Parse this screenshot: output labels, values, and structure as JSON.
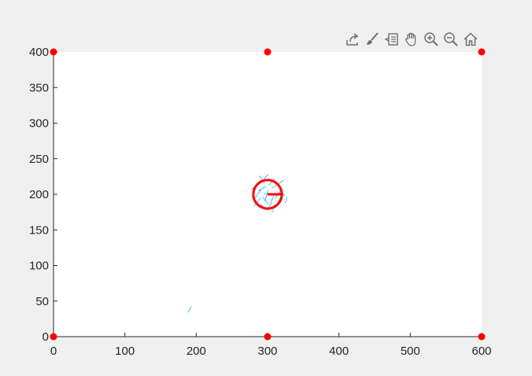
{
  "toolbar": {
    "buttons": [
      {
        "name": "export-icon"
      },
      {
        "name": "brush-icon"
      },
      {
        "name": "data-tips-icon"
      },
      {
        "name": "pan-icon"
      },
      {
        "name": "zoom-in-icon"
      },
      {
        "name": "zoom-out-icon"
      },
      {
        "name": "home-icon"
      }
    ],
    "icon_color": "#6e6e6e"
  },
  "chart_data": {
    "type": "scatter",
    "title": "",
    "xlabel": "",
    "ylabel": "",
    "xlim": [
      0,
      600
    ],
    "ylim": [
      0,
      400
    ],
    "xticks": [
      0,
      100,
      200,
      300,
      400,
      500,
      600
    ],
    "yticks": [
      0,
      50,
      100,
      150,
      200,
      250,
      300,
      350,
      400
    ],
    "grid": false,
    "legend": "none",
    "series": [
      {
        "marker": "filled-circle",
        "color": "#ff0000",
        "x": [
          0,
          300,
          600,
          0,
          300,
          600
        ],
        "y": [
          400,
          400,
          400,
          0,
          0,
          0
        ]
      }
    ],
    "circle": {
      "cx": 300,
      "cy": 200,
      "r": 20,
      "color": "#ff0000",
      "heading_deg": 0
    },
    "segments": {
      "color": "#4db8e8",
      "lines": [
        [
          [
            296,
            190
          ],
          [
            301,
            206
          ]
        ],
        [
          [
            304,
            188
          ],
          [
            309,
            199
          ]
        ],
        [
          [
            287,
            205
          ],
          [
            298,
            211
          ]
        ],
        [
          [
            292,
            218
          ],
          [
            301,
            228
          ]
        ],
        [
          [
            310,
            194
          ],
          [
            318,
            205
          ]
        ],
        [
          [
            281,
            183
          ],
          [
            290,
            195
          ]
        ],
        [
          [
            293,
            196
          ],
          [
            302,
            186
          ]
        ],
        [
          [
            306,
            209
          ],
          [
            316,
            214
          ]
        ],
        [
          [
            312,
            183
          ],
          [
            318,
            196
          ]
        ],
        [
          [
            299,
            178
          ],
          [
            306,
            188
          ]
        ],
        [
          [
            283,
            195
          ],
          [
            291,
            207
          ]
        ],
        [
          [
            302,
            213
          ],
          [
            310,
            222
          ]
        ],
        [
          [
            319,
            206
          ],
          [
            324,
            197
          ]
        ],
        [
          [
            288,
            226
          ],
          [
            296,
            216
          ]
        ],
        [
          [
            307,
            175
          ],
          [
            310,
            186
          ]
        ],
        [
          [
            325,
            188
          ],
          [
            327,
            196
          ]
        ],
        [
          [
            278,
            207
          ],
          [
            285,
            213
          ]
        ],
        [
          [
            315,
            214
          ],
          [
            322,
            220
          ]
        ],
        [
          [
            295,
            201
          ],
          [
            305,
            199
          ]
        ],
        [
          [
            290,
            186
          ],
          [
            297,
            180
          ]
        ],
        [
          [
            189,
            34
          ],
          [
            193,
            43
          ]
        ]
      ]
    }
  }
}
